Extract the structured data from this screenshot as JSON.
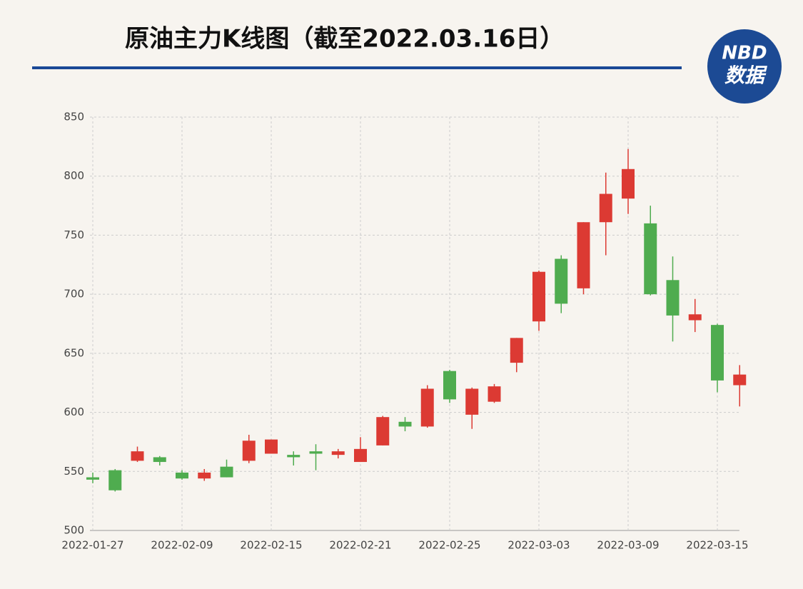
{
  "chart_data": {
    "type": "candlestick",
    "title": "原油主力K线图（截至2022.03.16日）",
    "categories": [
      "2022-01-27",
      null,
      null,
      null,
      "2022-02-09",
      null,
      null,
      null,
      "2022-02-15",
      null,
      null,
      null,
      "2022-02-21",
      null,
      null,
      null,
      "2022-02-25",
      null,
      null,
      null,
      "2022-03-03",
      null,
      null,
      null,
      "2022-03-09",
      null,
      null,
      null,
      "2022-03-15",
      null
    ],
    "open": [
      545,
      551,
      559,
      562,
      549,
      544,
      554,
      559,
      565,
      564,
      567,
      564,
      558,
      572,
      592,
      588,
      635,
      598,
      609,
      642,
      677,
      730,
      705,
      761,
      781,
      760,
      712,
      678,
      674,
      623
    ],
    "high": [
      549,
      552,
      571,
      563,
      551,
      552,
      560,
      581,
      577,
      567,
      573,
      569,
      579,
      597,
      596,
      623,
      636,
      621,
      624,
      663,
      720,
      733,
      761,
      803,
      823,
      775,
      732,
      696,
      675,
      640
    ],
    "low": [
      540,
      533,
      558,
      555,
      543,
      542,
      545,
      557,
      565,
      555,
      551,
      561,
      558,
      572,
      584,
      587,
      608,
      586,
      608,
      634,
      669,
      684,
      700,
      733,
      768,
      699,
      660,
      668,
      617,
      605
    ],
    "close": [
      543,
      534,
      567,
      558,
      544,
      549,
      545,
      576,
      577,
      562,
      565,
      567,
      569,
      596,
      588,
      620,
      611,
      620,
      622,
      663,
      719,
      692,
      761,
      785,
      806,
      700,
      682,
      683,
      627,
      632
    ],
    "up_color": "#dc3a33",
    "down_color": "#4fac4f",
    "ylim": [
      500,
      850
    ],
    "yticks": [
      500,
      550,
      600,
      650,
      700,
      750,
      800,
      850
    ],
    "grid": true
  },
  "logo": {
    "line1": "NBD",
    "line2": "数据"
  }
}
